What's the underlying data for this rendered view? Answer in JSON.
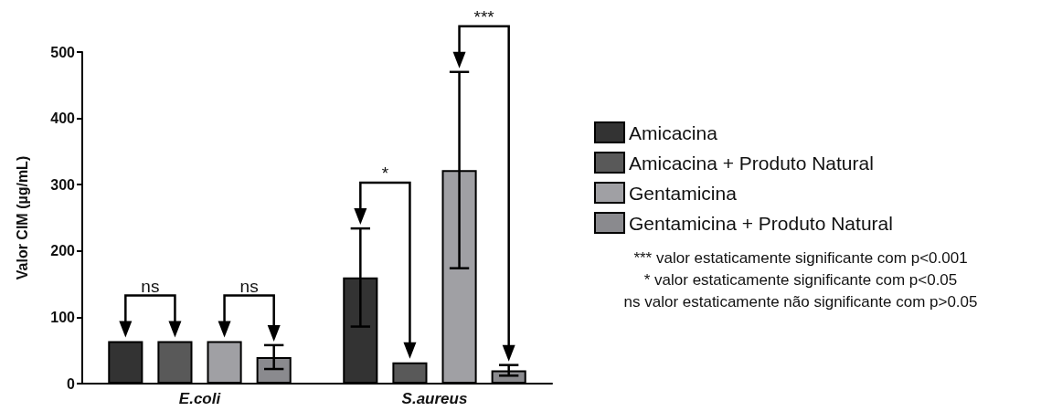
{
  "chart_data": {
    "type": "bar",
    "ylabel": "Valor CIM (µg/mL)",
    "categories": [
      "E.coli",
      "S.aureus"
    ],
    "ylim": [
      0,
      500
    ],
    "yticks": [
      0,
      100,
      200,
      300,
      400,
      500
    ],
    "legend": "right",
    "series": [
      {
        "name": "Amicacina",
        "color": "#333333",
        "values": [
          64,
          160
        ],
        "errors": [
          null,
          74
        ]
      },
      {
        "name": "Amicacina + Produto Natural",
        "color": "#595959",
        "values": [
          64,
          32
        ],
        "errors": [
          null,
          null
        ]
      },
      {
        "name": "Gentamicina",
        "color": "#a0a0a4",
        "values": [
          64,
          322
        ],
        "errors": [
          null,
          148
        ]
      },
      {
        "name": "Gentamicina + Produto Natural",
        "color": "#8a8a8e",
        "values": [
          40,
          20
        ],
        "errors": [
          18,
          8
        ]
      }
    ],
    "annotations": [
      "ns",
      "ns",
      "*",
      "***",
      "*** valor estaticamente significante com p<0.001",
      "* valor estaticamente significante com p<0.05",
      "ns valor estaticamente não significante com p>0.05"
    ]
  }
}
